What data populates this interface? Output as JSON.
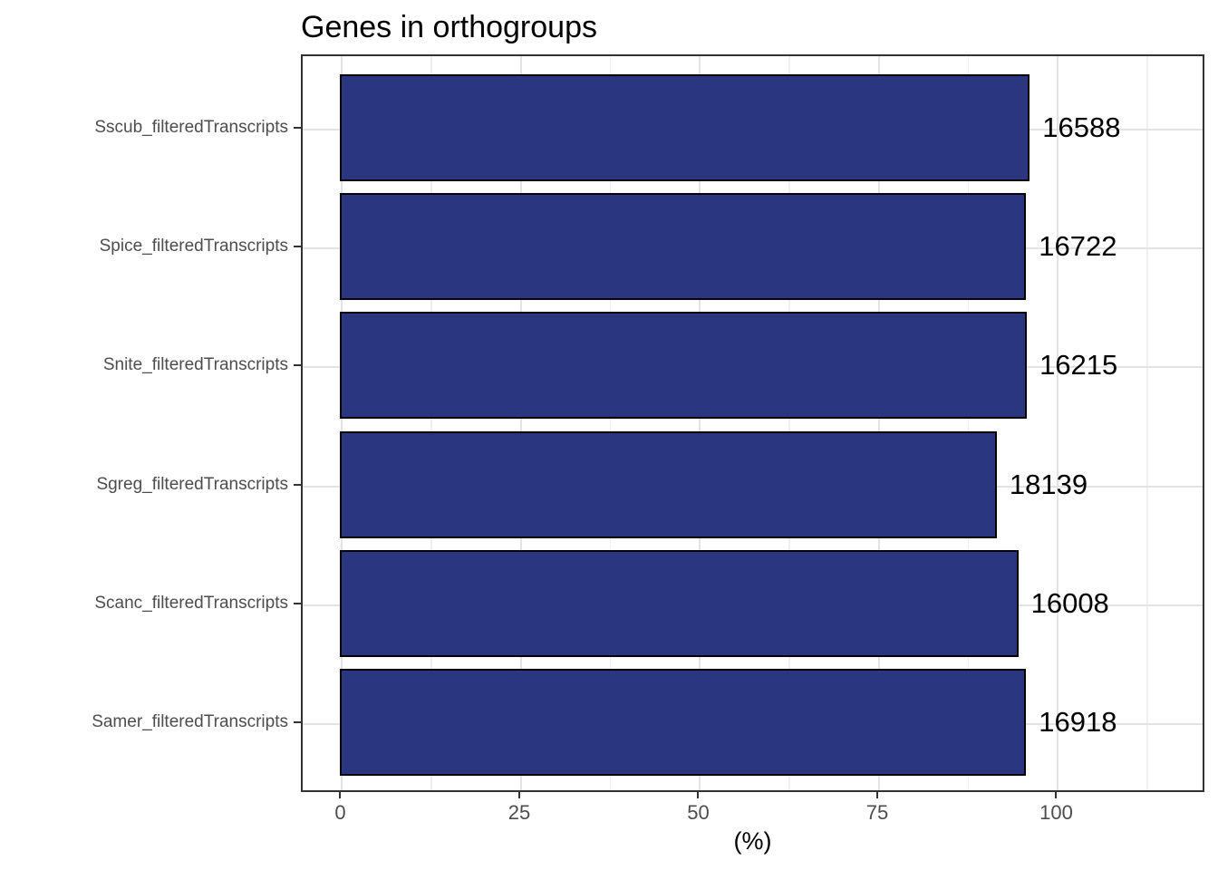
{
  "chart_data": {
    "type": "bar",
    "orientation": "horizontal",
    "title": "Genes in orthogroups",
    "xlabel": "(%)",
    "ylabel": "",
    "legend": "none",
    "grid": "major-x, minor-x, major-y",
    "categories": [
      "Sscub_filteredTranscripts",
      "Spice_filteredTranscripts",
      "Snite_filteredTranscripts",
      "Sgreg_filteredTranscripts",
      "Scanc_filteredTranscripts",
      "Samer_filteredTranscripts"
    ],
    "values_percent": [
      96.3,
      95.8,
      95.9,
      91.7,
      94.7,
      95.8
    ],
    "bar_value_labels": [
      "16588",
      "16722",
      "16215",
      "18139",
      "16008",
      "16918"
    ],
    "x_tick_labels": [
      "0",
      "25",
      "50",
      "75",
      "100"
    ],
    "x_tick_values": [
      0,
      25,
      50,
      75,
      100
    ],
    "x_minor_tick_values": [
      12.5,
      37.5,
      62.5,
      87.5,
      112.5
    ],
    "xlim": [
      -5.5,
      120.7
    ],
    "colors": {
      "bar_fill": "#2b3680",
      "bar_stroke": "#000000",
      "grid_major": "#e3e3e3",
      "grid_minor": "#efefef",
      "panel_border": "#333333",
      "axis_text": "#4d4d4d",
      "title_text": "#000000",
      "value_label_text": "#000000"
    }
  }
}
